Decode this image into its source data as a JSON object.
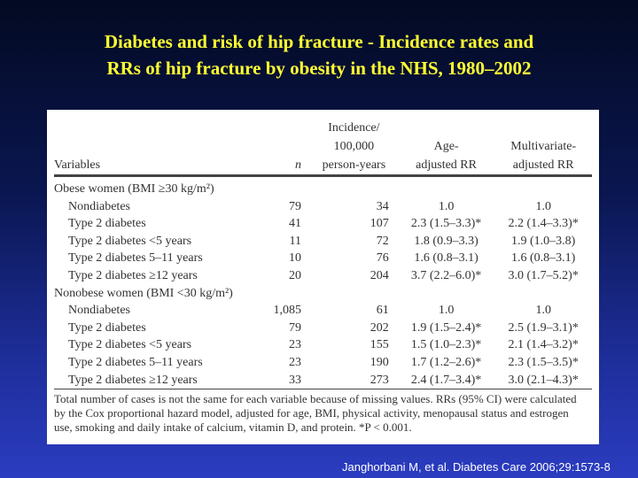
{
  "title": {
    "line1": "Diabetes and risk of hip fracture - Incidence rates and",
    "line2": "RRs of hip fracture by obesity in the NHS, 1980–2002"
  },
  "table": {
    "headers": {
      "variables": "Variables",
      "n": "n",
      "incidence_l1": "Incidence/",
      "incidence_l2": "100,000",
      "incidence_l3": "person-years",
      "age_l1": "Age-",
      "age_l2": "adjusted RR",
      "multi_l1": "Multivariate-",
      "multi_l2": "adjusted RR"
    },
    "groups": [
      {
        "label": "Obese women (BMI ≥30 kg/m²)",
        "rows": [
          {
            "variable": "Nondiabetes",
            "n": "79",
            "incidence": "34",
            "age_rr": "1.0",
            "multi_rr": "1.0"
          },
          {
            "variable": "Type 2 diabetes",
            "n": "41",
            "incidence": "107",
            "age_rr": "2.3 (1.5–3.3)*",
            "multi_rr": "2.2 (1.4–3.3)*"
          },
          {
            "variable": "Type 2 diabetes <5 years",
            "n": "11",
            "incidence": "72",
            "age_rr": "1.8 (0.9–3.3)",
            "multi_rr": "1.9 (1.0–3.8)"
          },
          {
            "variable": "Type 2 diabetes 5–11 years",
            "n": "10",
            "incidence": "76",
            "age_rr": "1.6 (0.8–3.1)",
            "multi_rr": "1.6 (0.8–3.1)"
          },
          {
            "variable": "Type 2 diabetes ≥12 years",
            "n": "20",
            "incidence": "204",
            "age_rr": "3.7 (2.2–6.0)*",
            "multi_rr": "3.0 (1.7–5.2)*"
          }
        ]
      },
      {
        "label": "Nonobese women (BMI <30 kg/m²)",
        "rows": [
          {
            "variable": "Nondiabetes",
            "n": "1,085",
            "incidence": "61",
            "age_rr": "1.0",
            "multi_rr": "1.0"
          },
          {
            "variable": "Type 2 diabetes",
            "n": "79",
            "incidence": "202",
            "age_rr": "1.9 (1.5–2.4)*",
            "multi_rr": "2.5 (1.9–3.1)*"
          },
          {
            "variable": "Type 2 diabetes <5 years",
            "n": "23",
            "incidence": "155",
            "age_rr": "1.5 (1.0–2.3)*",
            "multi_rr": "2.1 (1.4–3.2)*"
          },
          {
            "variable": "Type 2 diabetes 5–11 years",
            "n": "23",
            "incidence": "190",
            "age_rr": "1.7 (1.2–2.6)*",
            "multi_rr": "2.3 (1.5–3.5)*"
          },
          {
            "variable": "Type 2 diabetes ≥12 years",
            "n": "33",
            "incidence": "273",
            "age_rr": "2.4 (1.7–3.4)*",
            "multi_rr": "3.0 (2.1–4.3)*"
          }
        ]
      }
    ],
    "footnote": "Total number of cases is not the same for each variable because of missing values. RRs (95% CI) were calculated by the Cox proportional hazard model, adjusted for age, BMI, physical activity, menopausal status and estrogen use, smoking and daily intake of calcium, vitamin D, and protein. *P < 0.001."
  },
  "citation": "Janghorbani M, et al. Diabetes Care 2006;29:1573-8"
}
